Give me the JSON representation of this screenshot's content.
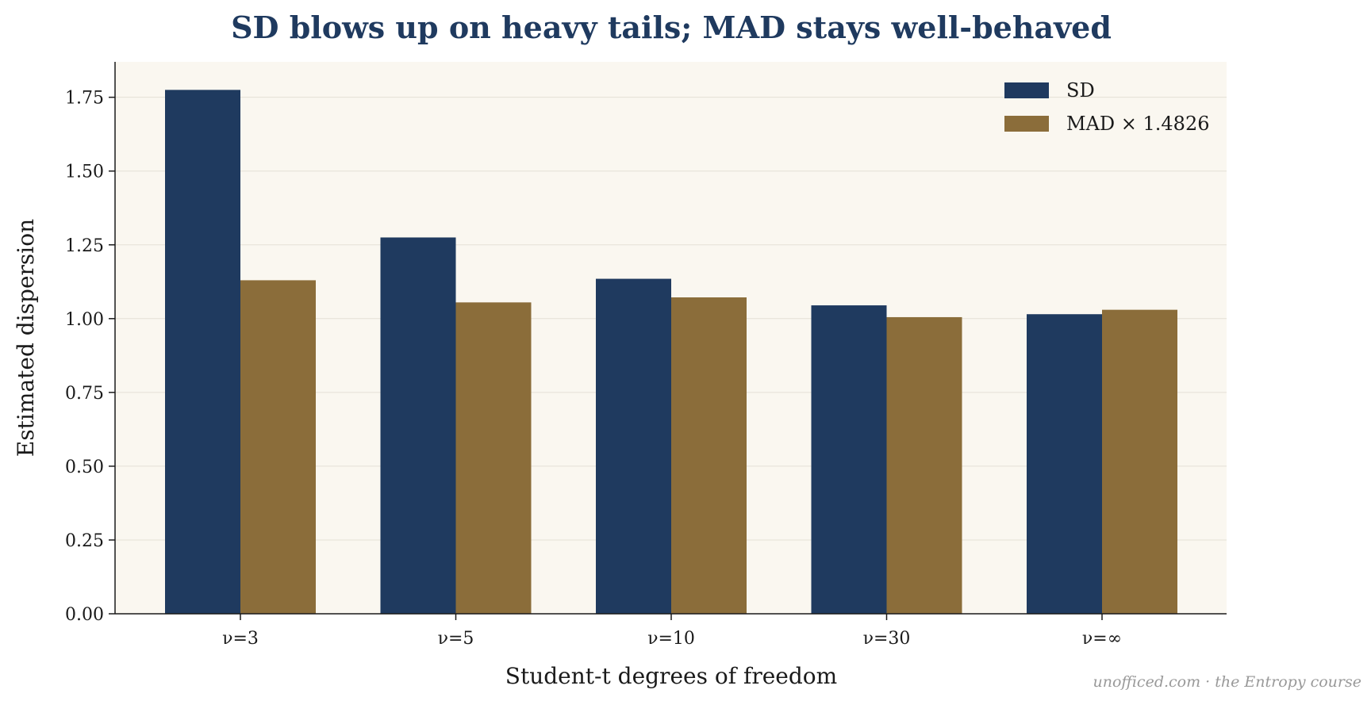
{
  "chart_data": {
    "type": "bar",
    "title": "SD blows up on heavy tails; MAD stays well-behaved",
    "xlabel": "Student-t degrees of freedom",
    "ylabel": "Estimated dispersion",
    "categories": [
      "ν=3",
      "ν=5",
      "ν=10",
      "ν=30",
      "ν=∞"
    ],
    "series": [
      {
        "name": "SD",
        "values": [
          1.775,
          1.275,
          1.135,
          1.045,
          1.015
        ],
        "color": "#1f3a5f"
      },
      {
        "name": "MAD × 1.4826",
        "values": [
          1.13,
          1.055,
          1.072,
          1.005,
          1.03
        ],
        "color": "#8b6d3a"
      }
    ],
    "ylim": [
      0,
      1.87
    ],
    "yticks": [
      "0.00",
      "0.25",
      "0.50",
      "0.75",
      "1.00",
      "1.25",
      "1.50",
      "1.75"
    ],
    "grid": true,
    "legend_position": "top-right",
    "plot_background": "#faf7f0"
  },
  "footer": {
    "credit": "unofficed.com  ·  the Entropy course"
  }
}
